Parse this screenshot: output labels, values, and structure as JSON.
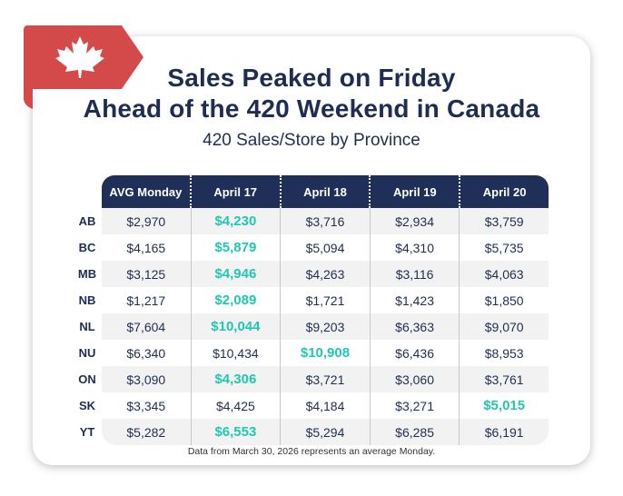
{
  "title_line1": "Sales Peaked on Friday",
  "title_line2": "Ahead of the 420 Weekend in Canada",
  "subtitle": "420 Sales/Store by Province",
  "footnote": "Data from March 30, 2026 represents an average Monday.",
  "colors": {
    "header": "#1f2f57",
    "highlight": "#1fc8b0",
    "ribbon": "#d44a4a",
    "text": "#1f2d52"
  },
  "logo_icon": "maple-leaf-icon",
  "chart_data": {
    "type": "table",
    "columns": [
      "AVG Monday",
      "April 17",
      "April 18",
      "April 19",
      "April 20"
    ],
    "rows": [
      {
        "label": "AB",
        "values": [
          "$2,970",
          "$4,230",
          "$3,716",
          "$2,934",
          "$3,759"
        ],
        "highlight": 1
      },
      {
        "label": "BC",
        "values": [
          "$4,165",
          "$5,879",
          "$5,094",
          "$4,310",
          "$5,735"
        ],
        "highlight": 1
      },
      {
        "label": "MB",
        "values": [
          "$3,125",
          "$4,946",
          "$4,263",
          "$3,116",
          "$4,063"
        ],
        "highlight": 1
      },
      {
        "label": "NB",
        "values": [
          "$1,217",
          "$2,089",
          "$1,721",
          "$1,423",
          "$1,850"
        ],
        "highlight": 1
      },
      {
        "label": "NL",
        "values": [
          "$7,604",
          "$10,044",
          "$9,203",
          "$6,363",
          "$9,070"
        ],
        "highlight": 1
      },
      {
        "label": "NU",
        "values": [
          "$6,340",
          "$10,434",
          "$10,908",
          "$6,436",
          "$8,953"
        ],
        "highlight": 2
      },
      {
        "label": "ON",
        "values": [
          "$3,090",
          "$4,306",
          "$3,721",
          "$3,060",
          "$3,761"
        ],
        "highlight": 1
      },
      {
        "label": "SK",
        "values": [
          "$3,345",
          "$4,425",
          "$4,184",
          "$3,271",
          "$5,015"
        ],
        "highlight": 4
      },
      {
        "label": "YT",
        "values": [
          "$5,282",
          "$6,553",
          "$5,294",
          "$6,285",
          "$6,191"
        ],
        "highlight": 1
      }
    ]
  }
}
